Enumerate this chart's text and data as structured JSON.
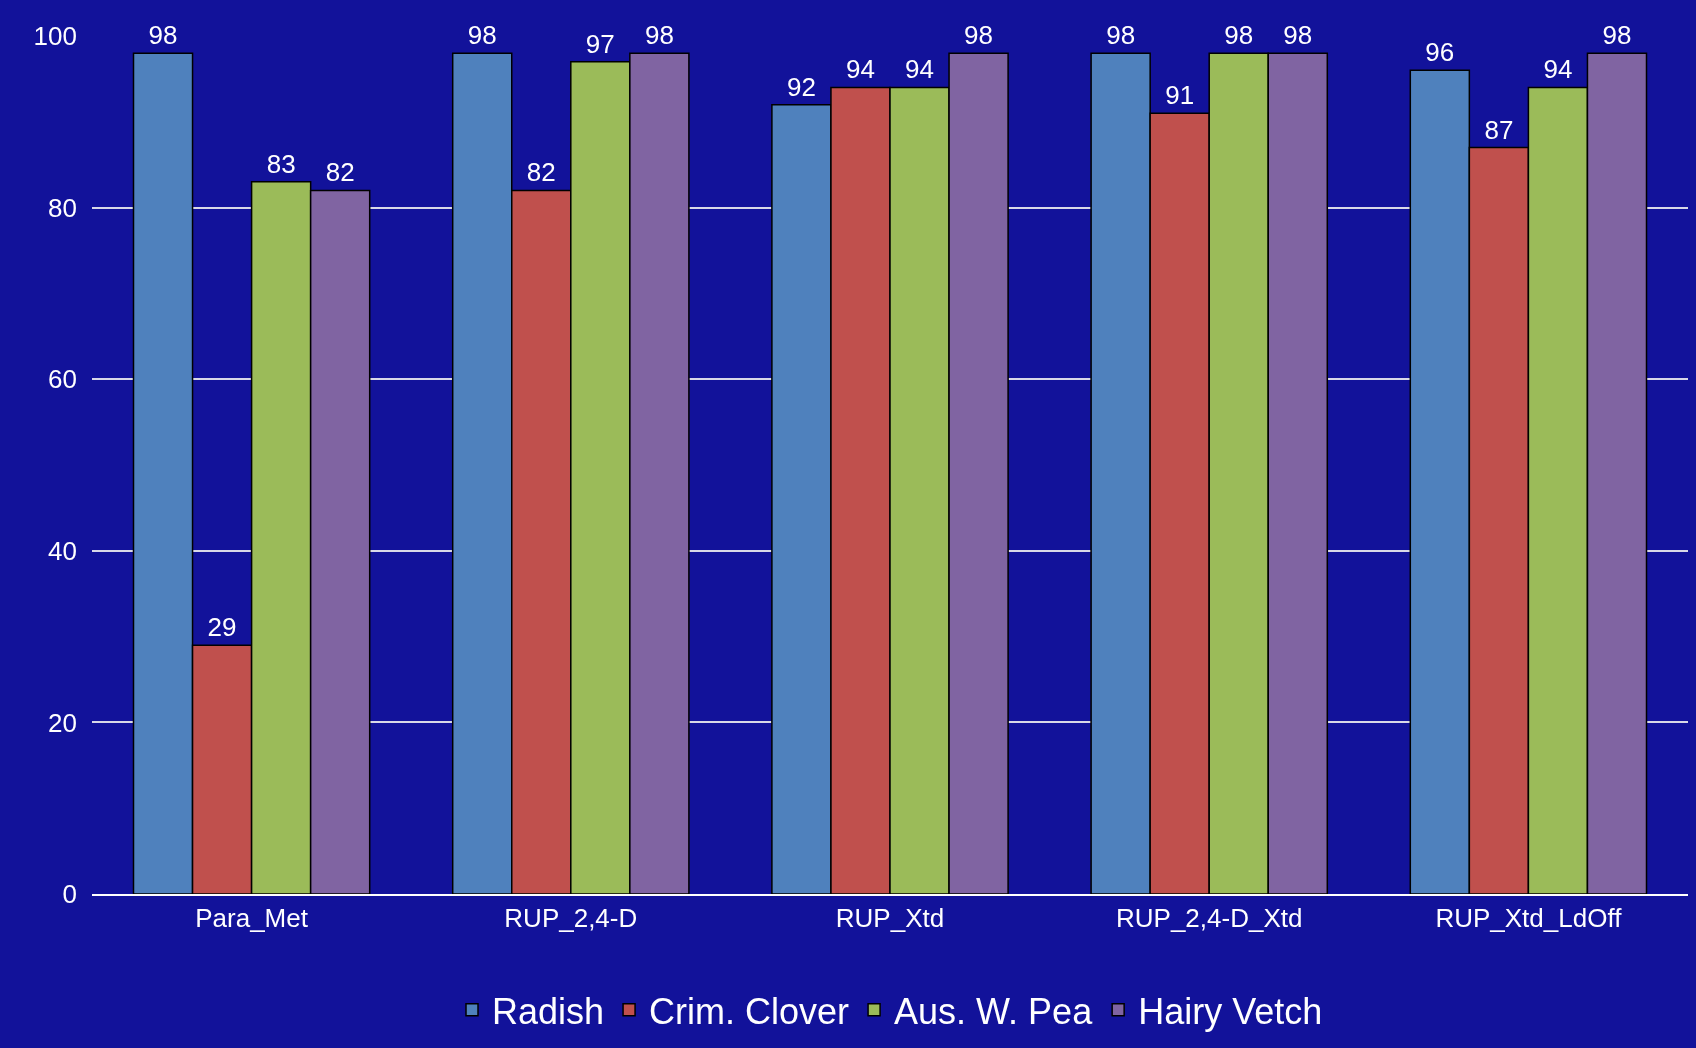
{
  "chart_data": {
    "type": "bar",
    "categories": [
      "Para_Met",
      "RUP_2,4-D",
      "RUP_Xtd",
      "RUP_2,4-D_Xtd",
      "RUP_Xtd_LdOff"
    ],
    "series": [
      {
        "name": "Radish",
        "color": "#4f81bd",
        "values": [
          98,
          98,
          92,
          98,
          96
        ]
      },
      {
        "name": "Crim. Clover",
        "color": "#c0504d",
        "values": [
          29,
          82,
          94,
          91,
          87
        ]
      },
      {
        "name": "Aus. W. Pea",
        "color": "#9bbb59",
        "values": [
          83,
          97,
          94,
          98,
          94
        ]
      },
      {
        "name": "Hairy Vetch",
        "color": "#8064a2",
        "values": [
          82,
          98,
          98,
          98,
          98
        ]
      }
    ],
    "ylim": [
      0,
      100
    ],
    "yticks": [
      0,
      20,
      40,
      60,
      80,
      100
    ],
    "grid": "y",
    "legend": "bottom",
    "data_labels": true
  }
}
